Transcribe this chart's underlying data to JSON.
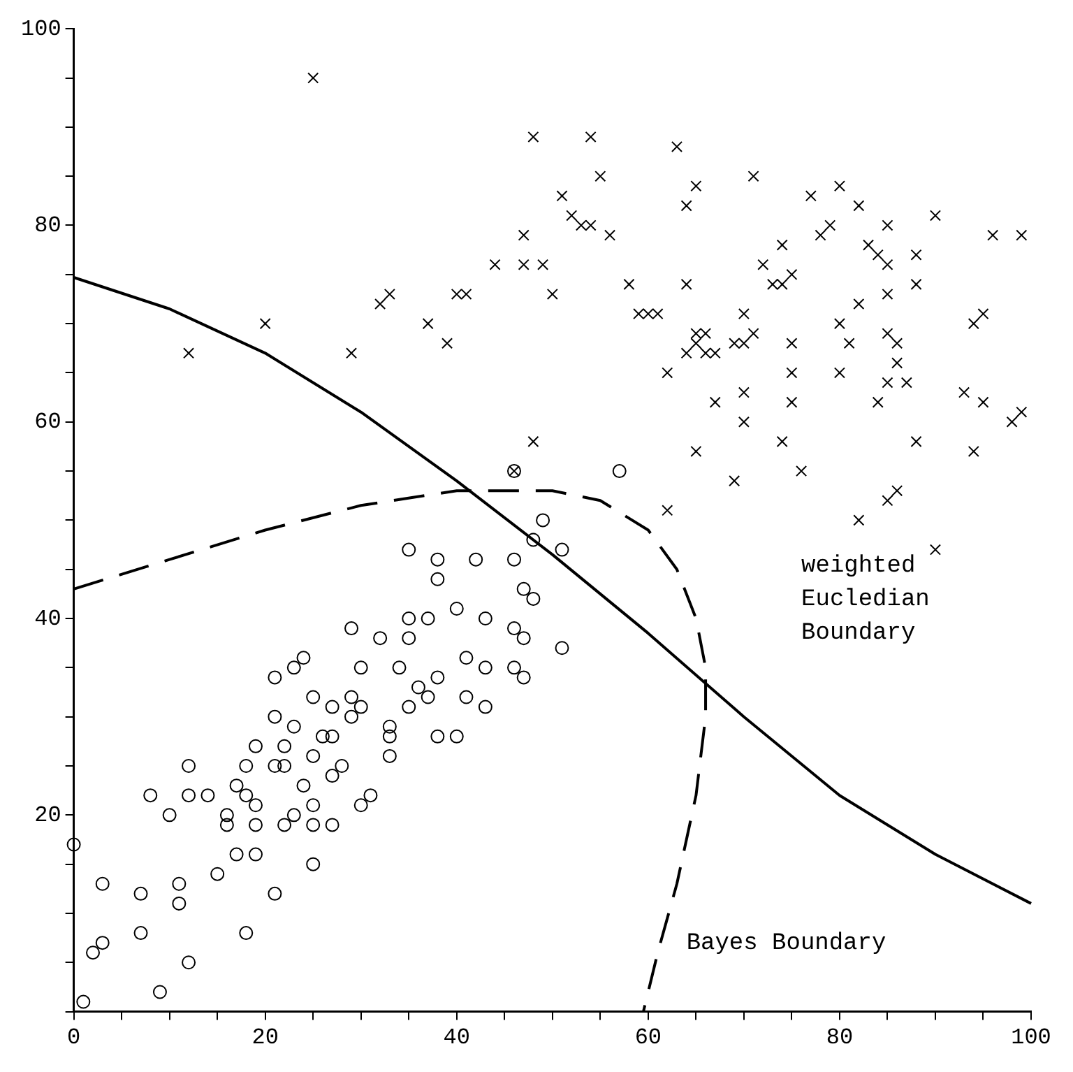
{
  "chart_data": {
    "type": "scatter",
    "xlim": [
      0,
      100
    ],
    "ylim": [
      0,
      100
    ],
    "xticks": [
      0,
      {
        "value": 5,
        "label": null
      },
      {
        "value": 10,
        "label": null
      },
      {
        "value": 15,
        "label": null
      },
      20,
      {
        "value": 25,
        "label": null
      },
      {
        "value": 30,
        "label": null
      },
      {
        "value": 35,
        "label": null
      },
      40,
      {
        "value": 45,
        "label": null
      },
      {
        "value": 50,
        "label": null
      },
      {
        "value": 55,
        "label": null
      },
      60,
      {
        "value": 65,
        "label": null
      },
      {
        "value": 70,
        "label": null
      },
      {
        "value": 75,
        "label": null
      },
      80,
      {
        "value": 85,
        "label": null
      },
      {
        "value": 90,
        "label": null
      },
      {
        "value": 95,
        "label": null
      },
      100
    ],
    "yticks": [
      {
        "value": 0,
        "label": null
      },
      {
        "value": 5,
        "label": null
      },
      {
        "value": 10,
        "label": null
      },
      {
        "value": 15,
        "label": null
      },
      20,
      {
        "value": 25,
        "label": null
      },
      {
        "value": 30,
        "label": null
      },
      {
        "value": 35,
        "label": null
      },
      40,
      {
        "value": 45,
        "label": null
      },
      {
        "value": 50,
        "label": null
      },
      {
        "value": 55,
        "label": null
      },
      60,
      {
        "value": 65,
        "label": null
      },
      {
        "value": 70,
        "label": null
      },
      {
        "value": 75,
        "label": null
      },
      80,
      {
        "value": 85,
        "label": null
      },
      {
        "value": 90,
        "label": null
      },
      {
        "value": 95,
        "label": null
      },
      100
    ],
    "grid": false,
    "legend": false,
    "series": [
      {
        "marker": "cross",
        "color": "#000000",
        "x": [
          25,
          48,
          54,
          63,
          55,
          71,
          80,
          51,
          64,
          65,
          77,
          79,
          82,
          52,
          53,
          54,
          56,
          47,
          44,
          47,
          49,
          50,
          40,
          41,
          33,
          32,
          20,
          37,
          39,
          29,
          12,
          58,
          59,
          60,
          61,
          62,
          64,
          64,
          65,
          66,
          66,
          67,
          65,
          69,
          70,
          70,
          71,
          72,
          73,
          74,
          74,
          75,
          75,
          75,
          75,
          74,
          78,
          80,
          80,
          81,
          83,
          84,
          85,
          85,
          85,
          84,
          85,
          85,
          86,
          86,
          87,
          88,
          88,
          88,
          82,
          85,
          86,
          90,
          90,
          93,
          94,
          95,
          94,
          95,
          96,
          99,
          98,
          99,
          82,
          70,
          70,
          69,
          65,
          62,
          76,
          67,
          48,
          46
        ],
        "values": [
          95,
          89,
          89,
          88,
          85,
          85,
          84,
          83,
          82,
          84,
          83,
          80,
          82,
          81,
          80,
          80,
          79,
          79,
          76,
          76,
          76,
          73,
          73,
          73,
          73,
          72,
          70,
          70,
          68,
          67,
          67,
          74,
          71,
          71,
          71,
          65,
          67,
          74,
          69,
          69,
          67,
          67,
          68,
          68,
          68,
          71,
          69,
          76,
          74,
          74,
          78,
          75,
          68,
          65,
          62,
          58,
          79,
          70,
          65,
          68,
          78,
          77,
          80,
          76,
          73,
          62,
          64,
          69,
          68,
          66,
          64,
          77,
          74,
          58,
          50,
          52,
          53,
          81,
          47,
          63,
          70,
          71,
          57,
          62,
          79,
          79,
          60,
          61,
          72,
          60,
          63,
          54,
          57,
          51,
          55,
          62,
          58,
          55
        ]
      },
      {
        "marker": "circle",
        "color": "#000000",
        "x": [
          0,
          1,
          2,
          3,
          3,
          7,
          7,
          8,
          9,
          10,
          11,
          11,
          12,
          12,
          12,
          14,
          15,
          16,
          16,
          17,
          17,
          18,
          18,
          18,
          19,
          19,
          19,
          19,
          21,
          21,
          21,
          21,
          22,
          22,
          22,
          23,
          23,
          23,
          24,
          24,
          25,
          25,
          25,
          25,
          25,
          26,
          27,
          27,
          27,
          27,
          28,
          29,
          29,
          29,
          30,
          30,
          30,
          31,
          32,
          33,
          33,
          33,
          34,
          35,
          35,
          35,
          35,
          36,
          37,
          37,
          38,
          38,
          38,
          38,
          40,
          40,
          41,
          41,
          42,
          43,
          43,
          43,
          46,
          46,
          46,
          46,
          47,
          47,
          47,
          48,
          48,
          49,
          51,
          51,
          57
        ],
        "values": [
          17,
          1,
          6,
          7,
          13,
          12,
          8,
          22,
          2,
          20,
          13,
          11,
          25,
          22,
          5,
          22,
          14,
          20,
          19,
          23,
          16,
          25,
          22,
          8,
          27,
          21,
          19,
          16,
          34,
          30,
          25,
          12,
          25,
          27,
          19,
          35,
          29,
          20,
          36,
          23,
          32,
          26,
          21,
          19,
          15,
          28,
          31,
          28,
          24,
          19,
          25,
          39,
          32,
          30,
          35,
          31,
          21,
          22,
          38,
          29,
          28,
          26,
          35,
          47,
          40,
          38,
          31,
          33,
          40,
          32,
          46,
          44,
          34,
          28,
          41,
          28,
          36,
          32,
          46,
          40,
          35,
          31,
          46,
          39,
          35,
          55,
          43,
          38,
          34,
          48,
          42,
          50,
          47,
          37,
          55
        ]
      },
      {
        "type": "line",
        "line_style": "solid",
        "color": "#000000",
        "x": [
          0,
          10,
          20,
          30,
          40,
          50,
          60,
          70,
          80,
          90,
          100
        ],
        "values": [
          74.7,
          71.5,
          67,
          61,
          54,
          46.5,
          38.5,
          30,
          22,
          16,
          11
        ]
      },
      {
        "type": "line",
        "line_style": "dashed",
        "color": "#000000",
        "x": [
          0,
          10,
          20,
          30,
          40,
          50,
          55,
          60,
          63,
          65,
          66,
          66,
          65,
          63,
          61,
          59.5
        ],
        "values": [
          43,
          46,
          49,
          51.5,
          53,
          53,
          52,
          49,
          45,
          40,
          35,
          30,
          22,
          13,
          6,
          0
        ]
      }
    ],
    "annotations": [
      "weighted\nEucledian\nBoundary",
      "Bayes Boundary"
    ]
  }
}
